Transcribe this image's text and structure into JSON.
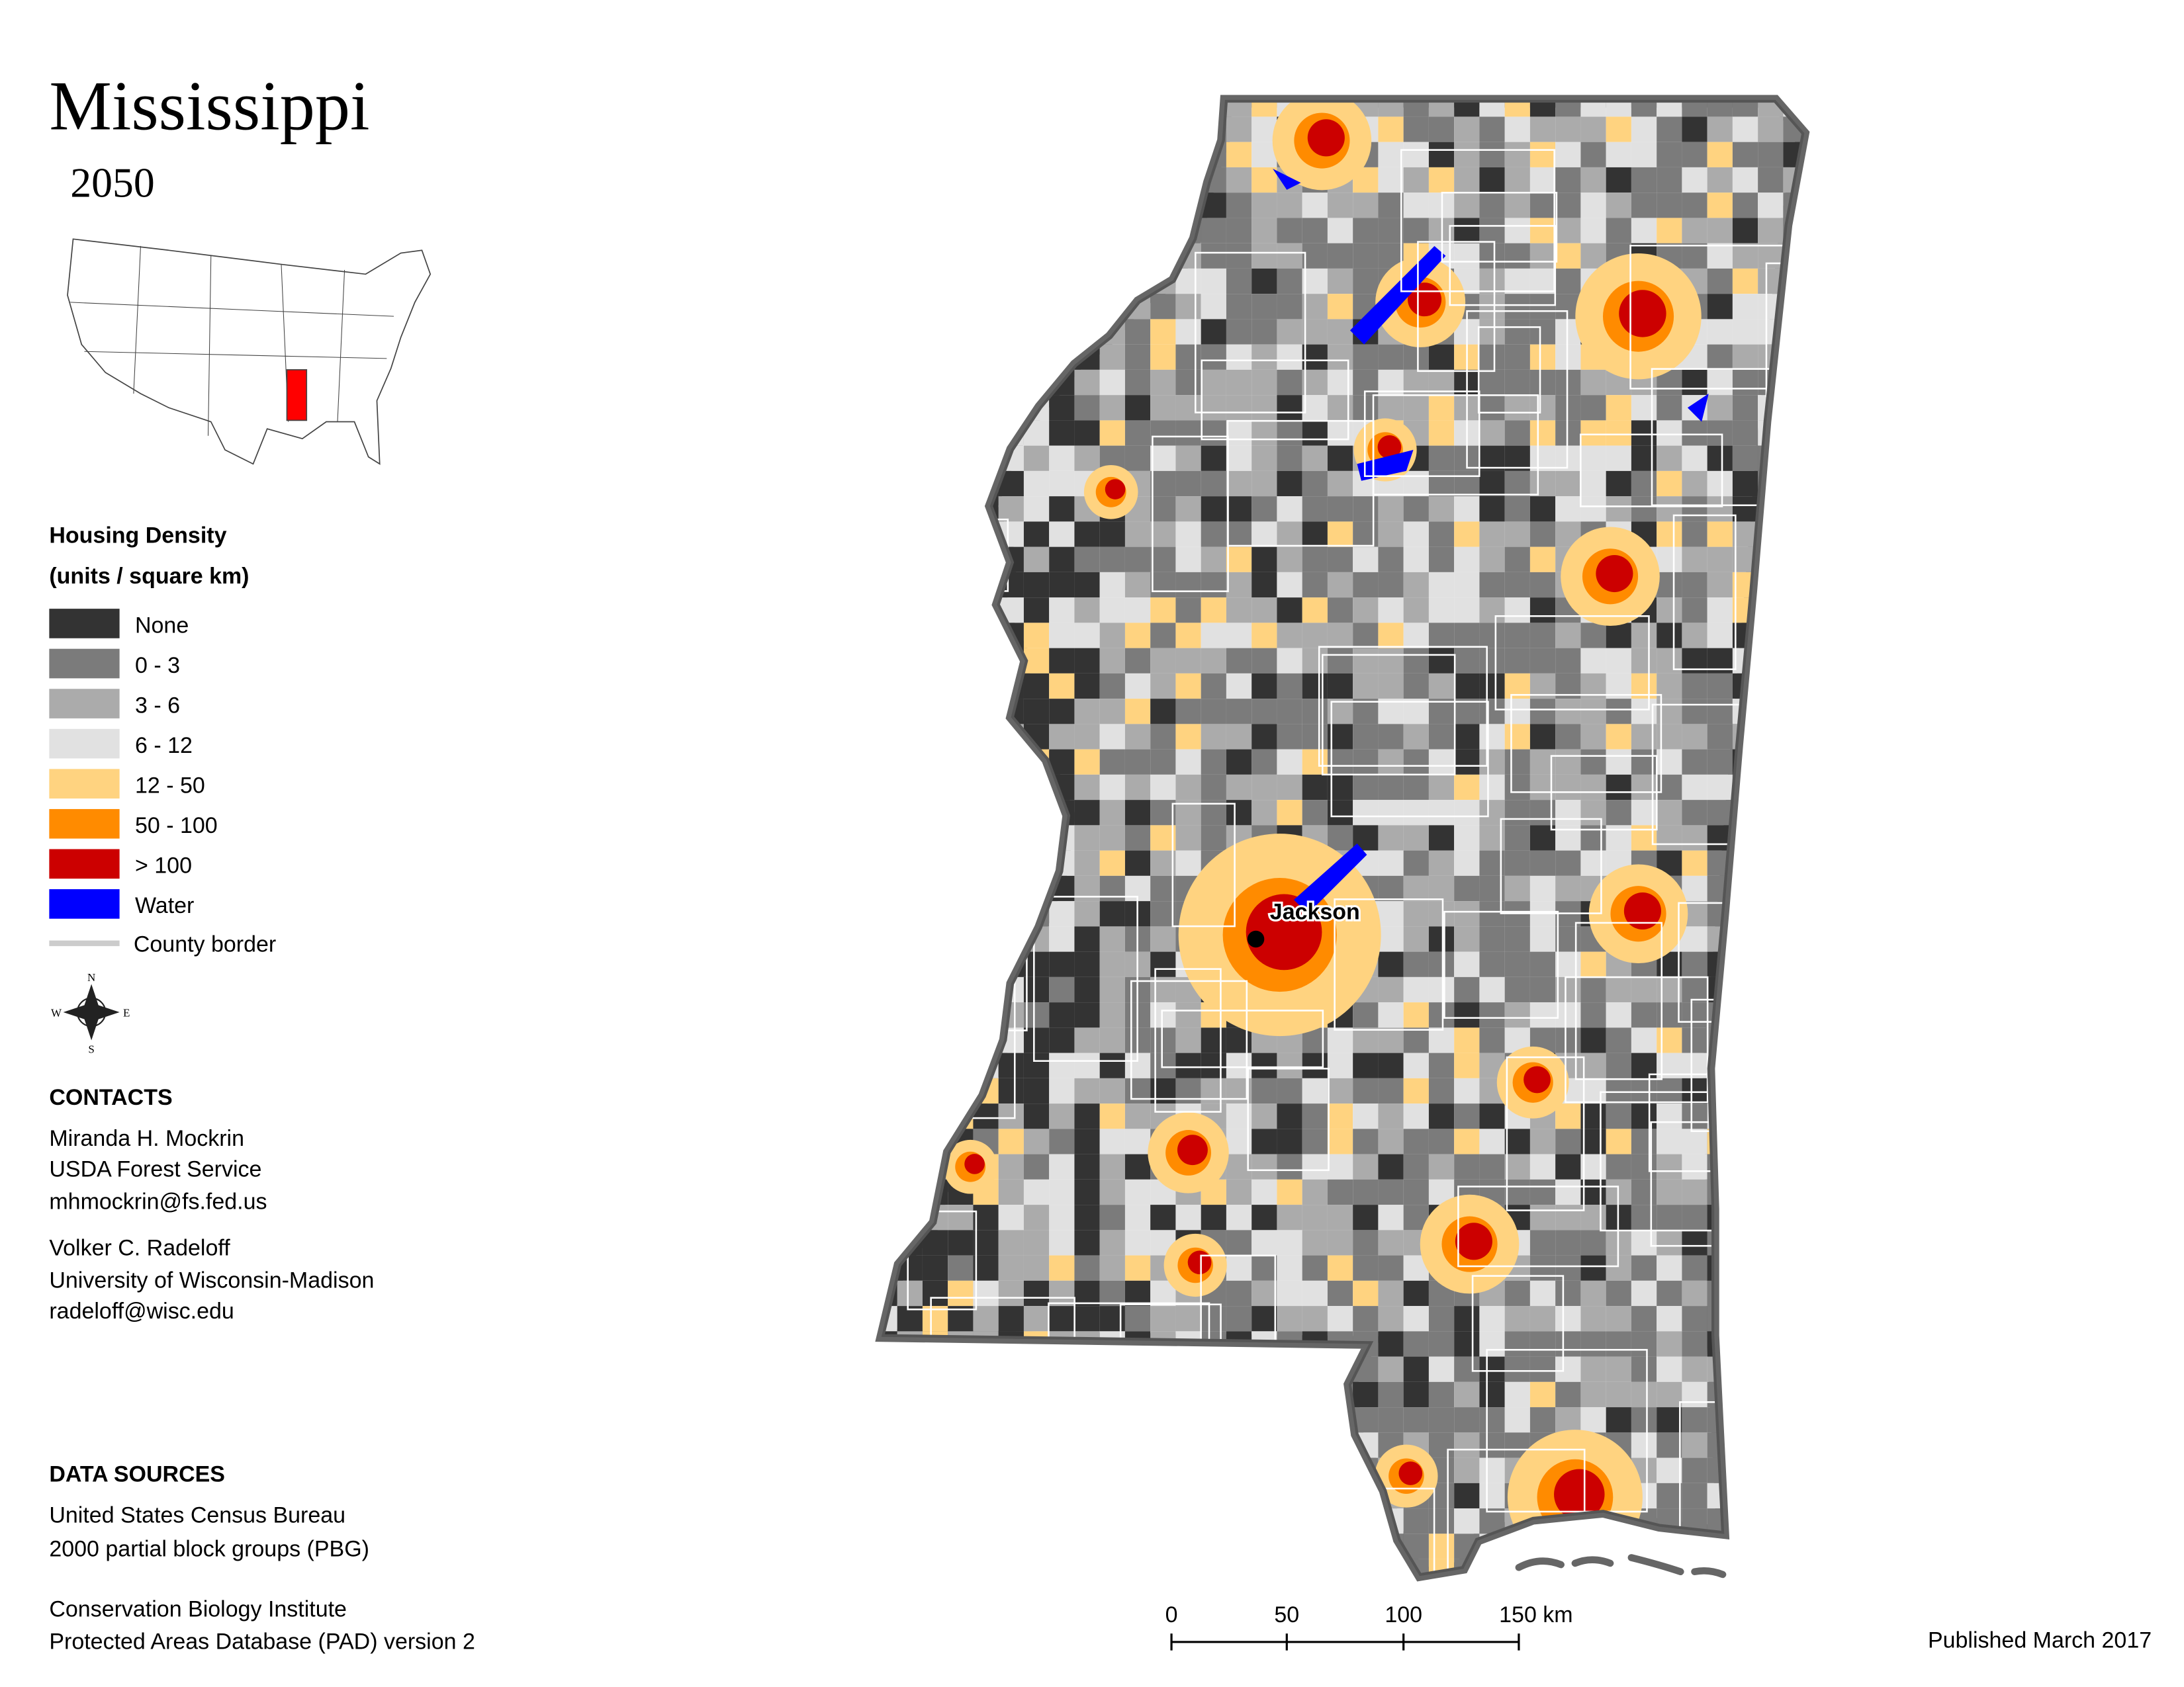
{
  "header": {
    "title": "Mississippi",
    "subtitle": "2050"
  },
  "legend": {
    "title": [
      "Housing Density",
      "(units / square km)"
    ],
    "items": [
      {
        "label": "None",
        "color": "#333333"
      },
      {
        "label": "0 - 3",
        "color": "#7b7b7b"
      },
      {
        "label": "3 - 6",
        "color": "#ababab"
      },
      {
        "label": "6 - 12",
        "color": "#e1e1e1"
      },
      {
        "label": "12 - 50",
        "color": "#ffd380"
      },
      {
        "label": "50 - 100",
        "color": "#ff8b00"
      },
      {
        "label": "> 100",
        "color": "#cc0000"
      },
      {
        "label": "Water",
        "color": "#0000ff"
      }
    ],
    "border_label": "County border"
  },
  "map": {
    "city": "Jackson"
  },
  "compass": [
    "N",
    "E",
    "S",
    "W"
  ],
  "contacts": {
    "heading": "CONTACTS",
    "people": [
      [
        "Miranda H. Mockrin",
        "USDA Forest Service",
        "mhmockrin@fs.fed.us"
      ],
      [
        "Volker C. Radeloff",
        "University of Wisconsin-Madison",
        "radeloff@wisc.edu"
      ]
    ]
  },
  "data_sources": {
    "heading": "DATA SOURCES",
    "sources": [
      [
        "United States Census Bureau",
        "2000 partial block groups (PBG)"
      ],
      [
        "Conservation Biology Institute",
        "Protected Areas Database (PAD) version 2"
      ]
    ]
  },
  "scale_bar": [
    "0",
    "50",
    "100",
    "150 km"
  ],
  "footer": "Published March 2017"
}
